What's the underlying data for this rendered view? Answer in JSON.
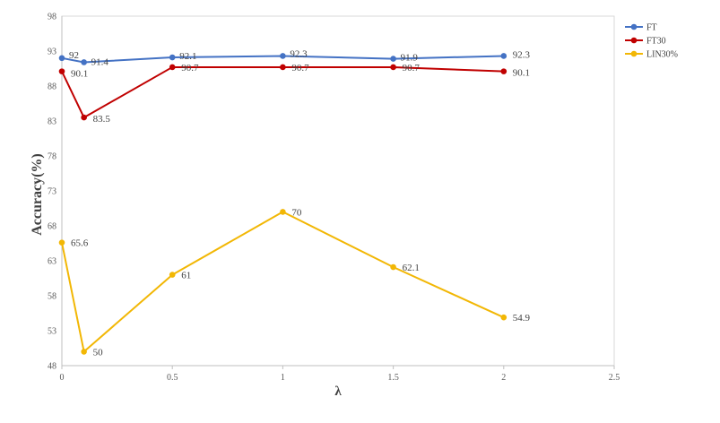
{
  "chart_data": {
    "type": "line",
    "title": "",
    "xlabel": "λ",
    "ylabel": "Accuracy(%)",
    "xlim": [
      0,
      2.5
    ],
    "ylim": [
      48,
      98
    ],
    "x_ticks": [
      0,
      0.5,
      1,
      1.5,
      2,
      2.5
    ],
    "x_tick_labels": [
      "0",
      "0.5",
      "1",
      "1.5",
      "2",
      "2.5"
    ],
    "y_ticks": [
      48,
      53,
      58,
      63,
      68,
      73,
      78,
      83,
      88,
      93,
      98
    ],
    "y_tick_labels": [
      "48",
      "53",
      "58",
      "63",
      "68",
      "73",
      "78",
      "83",
      "88",
      "93",
      "98"
    ],
    "grid": false,
    "legend_position": "top-right",
    "series": [
      {
        "name": "FT",
        "color": "#4472c4",
        "x": [
          0,
          0.1,
          0.5,
          1,
          1.5,
          2
        ],
        "values": [
          92,
          91.4,
          92.1,
          92.3,
          91.9,
          92.3
        ],
        "labels": [
          "92",
          "91.4",
          "92.1",
          "92.3",
          "91.9",
          "92.3"
        ]
      },
      {
        "name": "FT30",
        "color": "#c00000",
        "x": [
          0,
          0.1,
          0.5,
          1,
          1.5,
          2
        ],
        "values": [
          90.1,
          83.5,
          90.7,
          90.7,
          90.7,
          90.1
        ],
        "labels": [
          "90.1",
          "83.5",
          "90.7",
          "90.7",
          "90.7",
          "90.1"
        ]
      },
      {
        "name": "LIN30%",
        "color": "#f2b705",
        "x": [
          0,
          0.1,
          0.5,
          1,
          1.5,
          2
        ],
        "values": [
          65.6,
          50,
          61,
          70,
          62.1,
          54.9
        ],
        "labels": [
          "65.6",
          "50",
          "61",
          "70",
          "62.1",
          "54.9"
        ]
      }
    ]
  }
}
